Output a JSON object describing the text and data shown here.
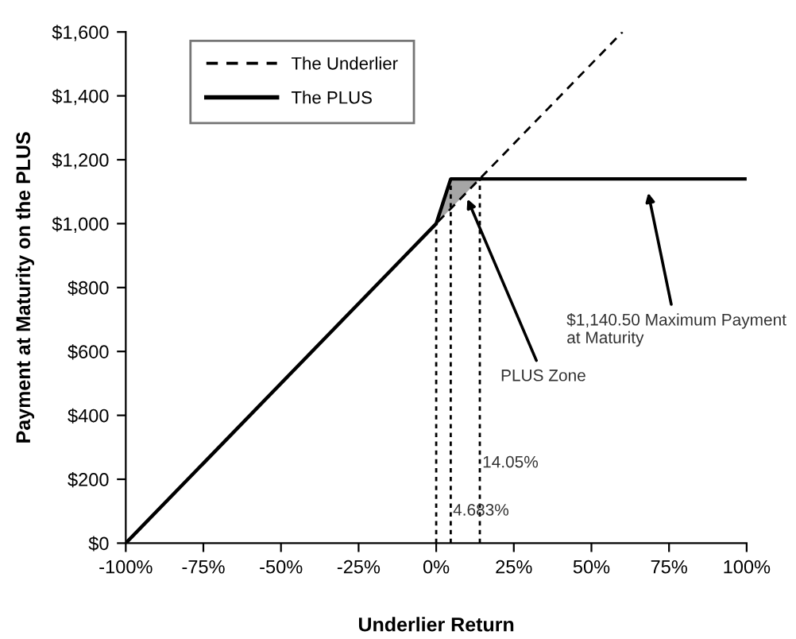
{
  "chart_data": {
    "type": "line",
    "xlabel": "Underlier Return",
    "ylabel": "Payment at Maturity on the PLUS",
    "xlim": [
      -100,
      100
    ],
    "ylim": [
      0,
      1600
    ],
    "xticks": [
      {
        "value": -100,
        "label": "-100%"
      },
      {
        "value": -75,
        "label": "-75%"
      },
      {
        "value": -50,
        "label": "-50%"
      },
      {
        "value": -25,
        "label": "-25%"
      },
      {
        "value": 0,
        "label": "0%"
      },
      {
        "value": 25,
        "label": "25%"
      },
      {
        "value": 50,
        "label": "50%"
      },
      {
        "value": 75,
        "label": "75%"
      },
      {
        "value": 100,
        "label": "100%"
      }
    ],
    "yticks": [
      {
        "value": 0,
        "label": "$0"
      },
      {
        "value": 200,
        "label": "$200"
      },
      {
        "value": 400,
        "label": "$400"
      },
      {
        "value": 600,
        "label": "$600"
      },
      {
        "value": 800,
        "label": "$800"
      },
      {
        "value": 1000,
        "label": "$1,000"
      },
      {
        "value": 1200,
        "label": "$1,200"
      },
      {
        "value": 1400,
        "label": "$1,400"
      },
      {
        "value": 1600,
        "label": "$1,600"
      }
    ],
    "series": [
      {
        "name": "The Underlier",
        "color": "#000000",
        "line_style": "dashed",
        "x": [
          -100,
          60
        ],
        "values": [
          0,
          1600
        ]
      },
      {
        "name": "The PLUS",
        "color": "#000000",
        "line_style": "solid",
        "x": [
          -100,
          0,
          4.683,
          14.05,
          100
        ],
        "values": [
          0,
          1000,
          1140,
          1140,
          1140
        ],
        "lower": [
          0,
          1000,
          1047,
          1140,
          1140
        ],
        "upper": [
          0,
          1000,
          1140,
          1140,
          1140
        ]
      },
      {
        "color": "#000000",
        "line_style": "dotted",
        "x": [
          0,
          0
        ],
        "values": [
          0,
          1000
        ]
      },
      {
        "color": "#000000",
        "line_style": "dotted",
        "x": [
          4.683,
          4.683
        ],
        "values": [
          0,
          1140
        ]
      },
      {
        "color": "#000000",
        "line_style": "dotted",
        "x": [
          14.05,
          14.05
        ],
        "values": [
          0,
          1140
        ]
      }
    ],
    "annotations": [
      {
        "text": "$1,140.50 Maximum Payment\nat Maturity",
        "x": 68,
        "y": 1110
      },
      {
        "text": "PLUS Zone",
        "x": 9.5,
        "y": 1090
      },
      {
        "text": "4.683%",
        "x": 4.683,
        "y": 100
      },
      {
        "text": "14.05%",
        "x": 14.05,
        "y": 250
      }
    ],
    "legend": "top left",
    "grid": false,
    "marker": "none"
  }
}
